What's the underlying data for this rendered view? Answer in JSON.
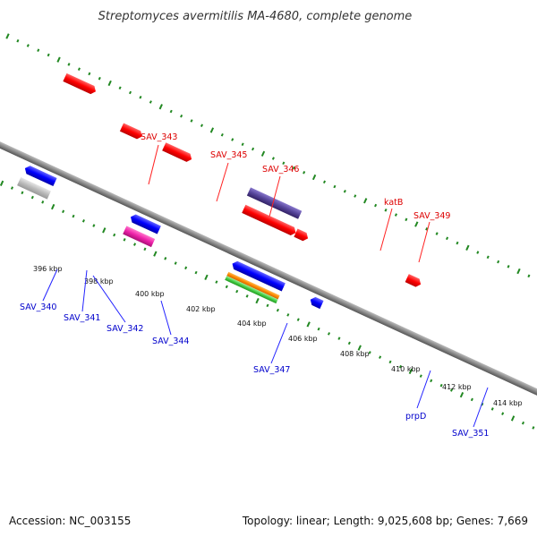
{
  "title": "Streptomyces avermitilis MA-4680, complete genome",
  "footer": {
    "accession": "Accession: NC_003155",
    "summary": "Topology: linear; Length: 9,025,608 bp; Genes: 7,669"
  },
  "scale": {
    "tick_labels": [
      "396 kbp",
      "398 kbp",
      "400 kbp",
      "402 kbp",
      "404 kbp",
      "406 kbp",
      "408 kbp",
      "410 kbp",
      "412 kbp",
      "414 kbp"
    ]
  },
  "genes_forward": [
    {
      "label": "SAV_343"
    },
    {
      "label": "SAV_345"
    },
    {
      "label": "SAV_346"
    },
    {
      "label": "katB"
    },
    {
      "label": "SAV_349"
    }
  ],
  "genes_reverse": [
    {
      "label": "SAV_340"
    },
    {
      "label": "SAV_341"
    },
    {
      "label": "SAV_342"
    },
    {
      "label": "SAV_344"
    },
    {
      "label": "SAV_347"
    },
    {
      "label": "prpD"
    },
    {
      "label": "SAV_351"
    }
  ],
  "colors": {
    "forward_gene": "#ff0000",
    "reverse_gene": "#0000ff",
    "forward_label": "#dd0000",
    "reverse_label": "#0000cc",
    "backbone": "#888888",
    "ticks": "#228822",
    "feature_cyan": "#33ddee",
    "feature_gray": "#bbbbbb",
    "feature_magenta": "#ee22aa",
    "feature_purple": "#554499",
    "feature_orange": "#ff8800",
    "feature_green": "#44cc44"
  }
}
